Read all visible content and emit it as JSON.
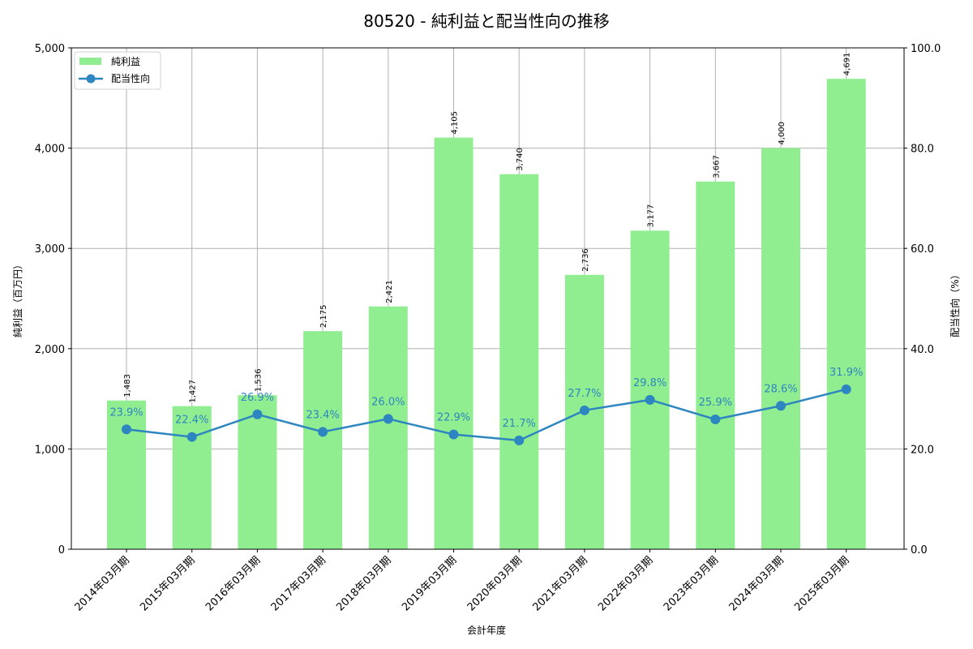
{
  "chart_data": {
    "type": "bar",
    "title": "80520 - 純利益と配当性向の推移",
    "xlabel": "会計年度",
    "ylabel": "純利益（百万円）",
    "y2label": "配当性向（%）",
    "ylim": [
      0,
      5000
    ],
    "y2lim": [
      0,
      100
    ],
    "yticks": [
      "0",
      "1,000",
      "2,000",
      "3,000",
      "4,000",
      "5,000"
    ],
    "y2ticks": [
      "0.0",
      "20.0",
      "40.0",
      "60.0",
      "80.0",
      "100.0"
    ],
    "grid": true,
    "legend_position": "upper left",
    "categories": [
      "2014年03月期",
      "2015年03月期",
      "2016年03月期",
      "2017年03月期",
      "2018年03月期",
      "2019年03月期",
      "2020年03月期",
      "2021年03月期",
      "2022年03月期",
      "2023年03月期",
      "2024年03月期",
      "2025年03月期"
    ],
    "series": [
      {
        "name": "純利益",
        "type": "bar",
        "axis": "left",
        "color": "#90ee90",
        "values": [
          1483,
          1427,
          1536,
          2175,
          2421,
          4105,
          3740,
          2736,
          3177,
          3667,
          4000,
          4691
        ],
        "labels": [
          "1,483",
          "1,427",
          "1,536",
          "2,175",
          "2,421",
          "4,105",
          "3,740",
          "2,736",
          "3,177",
          "3,667",
          "4,000",
          "4,691"
        ]
      },
      {
        "name": "配当性向",
        "type": "line",
        "axis": "right",
        "color": "#2e86c1",
        "values": [
          23.9,
          22.4,
          26.9,
          23.4,
          26.0,
          22.9,
          21.7,
          27.7,
          29.8,
          25.9,
          28.6,
          31.9
        ],
        "labels": [
          "23.9%",
          "22.4%",
          "26.9%",
          "23.4%",
          "26.0%",
          "22.9%",
          "21.7%",
          "27.7%",
          "29.8%",
          "25.9%",
          "28.6%",
          "31.9%"
        ]
      }
    ]
  },
  "legend": {
    "bar_label": "純利益",
    "line_label": "配当性向"
  }
}
